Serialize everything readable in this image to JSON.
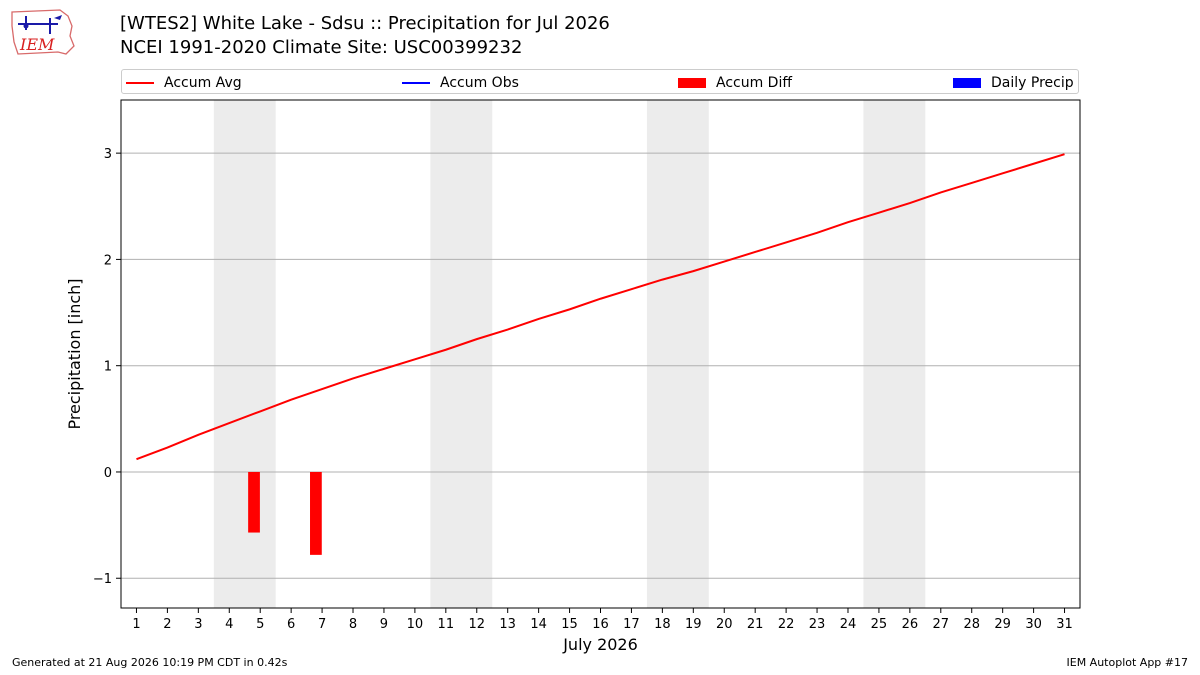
{
  "header": {
    "title_line1": "[WTES2] White Lake - Sdsu :: Precipitation for Jul 2026",
    "title_line2": "NCEI 1991-2020 Climate Site: USC00399232",
    "logo_text": "IEM"
  },
  "legend": [
    {
      "label": "Accum Avg",
      "color": "#ff0000",
      "kind": "line"
    },
    {
      "label": "Accum Obs",
      "color": "#0000ff",
      "kind": "line"
    },
    {
      "label": "Accum Diff",
      "color": "#ff0000",
      "kind": "box"
    },
    {
      "label": "Daily Precip",
      "color": "#0000ff",
      "kind": "box"
    }
  ],
  "footer": {
    "left": "Generated at 21 Aug 2026 10:19 PM CDT in 0.42s",
    "right": "IEM Autoplot App #17"
  },
  "chart_data": {
    "type": "line",
    "title": "[WTES2] White Lake - Sdsu :: Precipitation for Jul 2026",
    "xlabel": "July 2026",
    "ylabel": "Precipitation [inch]",
    "x": [
      1,
      2,
      3,
      4,
      5,
      6,
      7,
      8,
      9,
      10,
      11,
      12,
      13,
      14,
      15,
      16,
      17,
      18,
      19,
      20,
      21,
      22,
      23,
      24,
      25,
      26,
      27,
      28,
      29,
      30,
      31
    ],
    "xlim": [
      0.5,
      31.5
    ],
    "ylim": [
      -1.28,
      3.5
    ],
    "yticks": [
      -1,
      0,
      1,
      2,
      3
    ],
    "ytick_labels": [
      "−1",
      "0",
      "1",
      "2",
      "3"
    ],
    "grid": "horizontal",
    "legend_position": "top",
    "weekend_shading": [
      [
        3.5,
        5.5
      ],
      [
        10.5,
        12.5
      ],
      [
        17.5,
        19.5
      ],
      [
        24.5,
        26.5
      ]
    ],
    "series": [
      {
        "name": "Accum Avg",
        "type": "line",
        "color": "#ff0000",
        "values": [
          0.12,
          0.23,
          0.35,
          0.46,
          0.57,
          0.68,
          0.78,
          0.88,
          0.97,
          1.06,
          1.15,
          1.25,
          1.34,
          1.44,
          1.53,
          1.63,
          1.72,
          1.81,
          1.89,
          1.98,
          2.07,
          2.16,
          2.25,
          2.35,
          2.44,
          2.53,
          2.63,
          2.72,
          2.81,
          2.9,
          2.99
        ]
      },
      {
        "name": "Accum Diff",
        "type": "bar",
        "color": "#ff0000",
        "points": [
          {
            "x": 4.8,
            "y": -0.57
          },
          {
            "x": 6.8,
            "y": -0.78
          }
        ]
      }
    ]
  }
}
